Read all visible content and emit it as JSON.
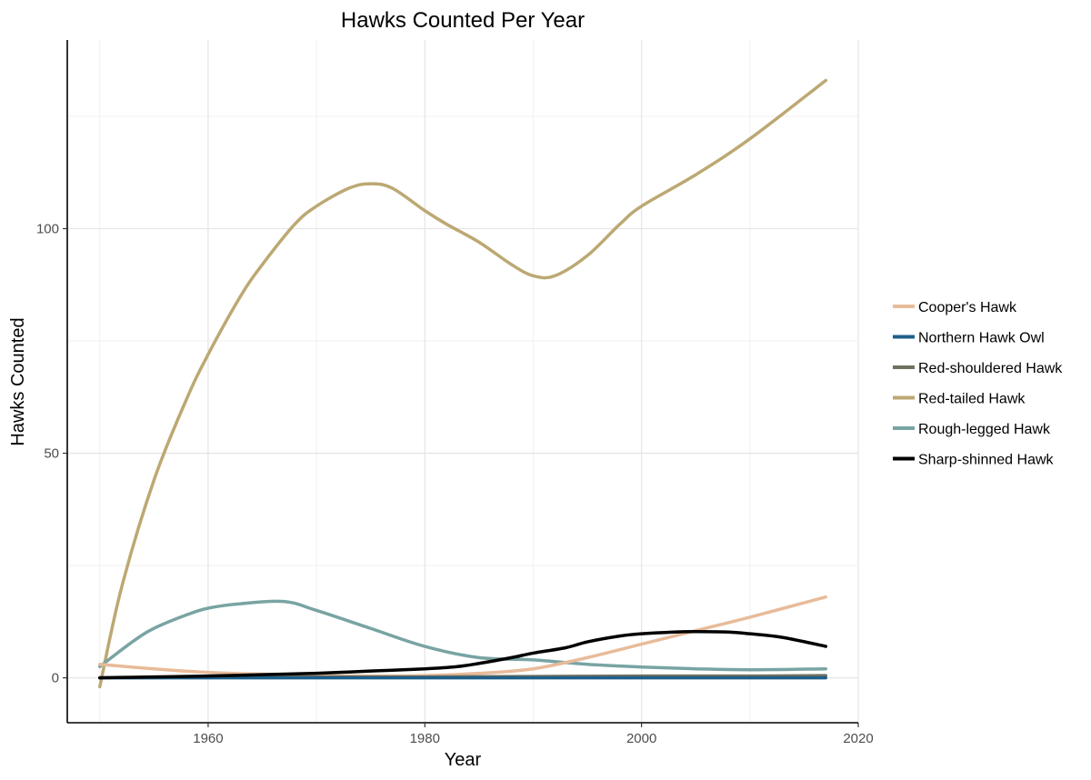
{
  "chart_data": {
    "type": "line",
    "title": "Hawks Counted Per Year",
    "xlabel": "Year",
    "ylabel": "Hawks Counted",
    "xlim": [
      1947,
      2020
    ],
    "ylim": [
      -10,
      142
    ],
    "x_ticks": [
      1960,
      1980,
      2000,
      2020
    ],
    "y_ticks": [
      0,
      50,
      100
    ],
    "grid": true,
    "legend_position": "right",
    "series": [
      {
        "name": "Cooper's Hawk",
        "color": "#e8bb9a",
        "x": [
          1950,
          1955,
          1960,
          1965,
          1970,
          1975,
          1980,
          1985,
          1990,
          1995,
          2000,
          2005,
          2010,
          2017
        ],
        "y": [
          3,
          2,
          1.2,
          0.8,
          0.5,
          0.4,
          0.5,
          1,
          2,
          4.5,
          7.5,
          10.5,
          13.5,
          18
        ]
      },
      {
        "name": "Northern Hawk Owl",
        "color": "#1e5f8a",
        "x": [
          1950,
          1960,
          1970,
          1980,
          1990,
          2000,
          2010,
          2017
        ],
        "y": [
          0,
          0,
          0,
          0,
          0,
          0,
          0,
          0
        ]
      },
      {
        "name": "Red-shouldered Hawk",
        "color": "#70715e",
        "x": [
          1950,
          1960,
          1970,
          1980,
          1990,
          2000,
          2010,
          2017
        ],
        "y": [
          0,
          0.1,
          0.2,
          0.2,
          0.3,
          0.4,
          0.4,
          0.5
        ]
      },
      {
        "name": "Red-tailed Hawk",
        "color": "#bca872",
        "x": [
          1950,
          1952,
          1955,
          1958,
          1960,
          1963,
          1965,
          1968,
          1970,
          1973,
          1975,
          1977,
          1980,
          1982,
          1985,
          1988,
          1990,
          1992,
          1995,
          1998,
          2000,
          2005,
          2010,
          2017
        ],
        "y": [
          -2,
          20,
          44,
          62,
          72,
          85,
          92,
          101,
          105,
          109,
          110,
          109,
          104,
          101,
          97,
          92,
          89.5,
          89.5,
          94,
          101,
          105,
          112,
          120,
          133
        ]
      },
      {
        "name": "Rough-legged Hawk",
        "color": "#78a4a3",
        "x": [
          1950,
          1953,
          1955,
          1958,
          1960,
          1963,
          1967,
          1970,
          1975,
          1980,
          1985,
          1990,
          1995,
          2000,
          2005,
          2010,
          2017
        ],
        "y": [
          2.5,
          8,
          11,
          14,
          15.5,
          16.5,
          17,
          15,
          11,
          7,
          4.5,
          4,
          3,
          2.4,
          2,
          1.8,
          2
        ]
      },
      {
        "name": "Sharp-shinned Hawk",
        "color": "#000000",
        "x": [
          1950,
          1955,
          1960,
          1965,
          1970,
          1975,
          1980,
          1983,
          1985,
          1988,
          1990,
          1993,
          1995,
          1998,
          2000,
          2003,
          2005,
          2008,
          2010,
          2013,
          2017
        ],
        "y": [
          0,
          0.2,
          0.4,
          0.7,
          1,
          1.5,
          2,
          2.5,
          3.2,
          4.5,
          5.5,
          6.7,
          8,
          9.3,
          9.8,
          10.2,
          10.3,
          10.2,
          9.8,
          9,
          7
        ]
      }
    ]
  }
}
